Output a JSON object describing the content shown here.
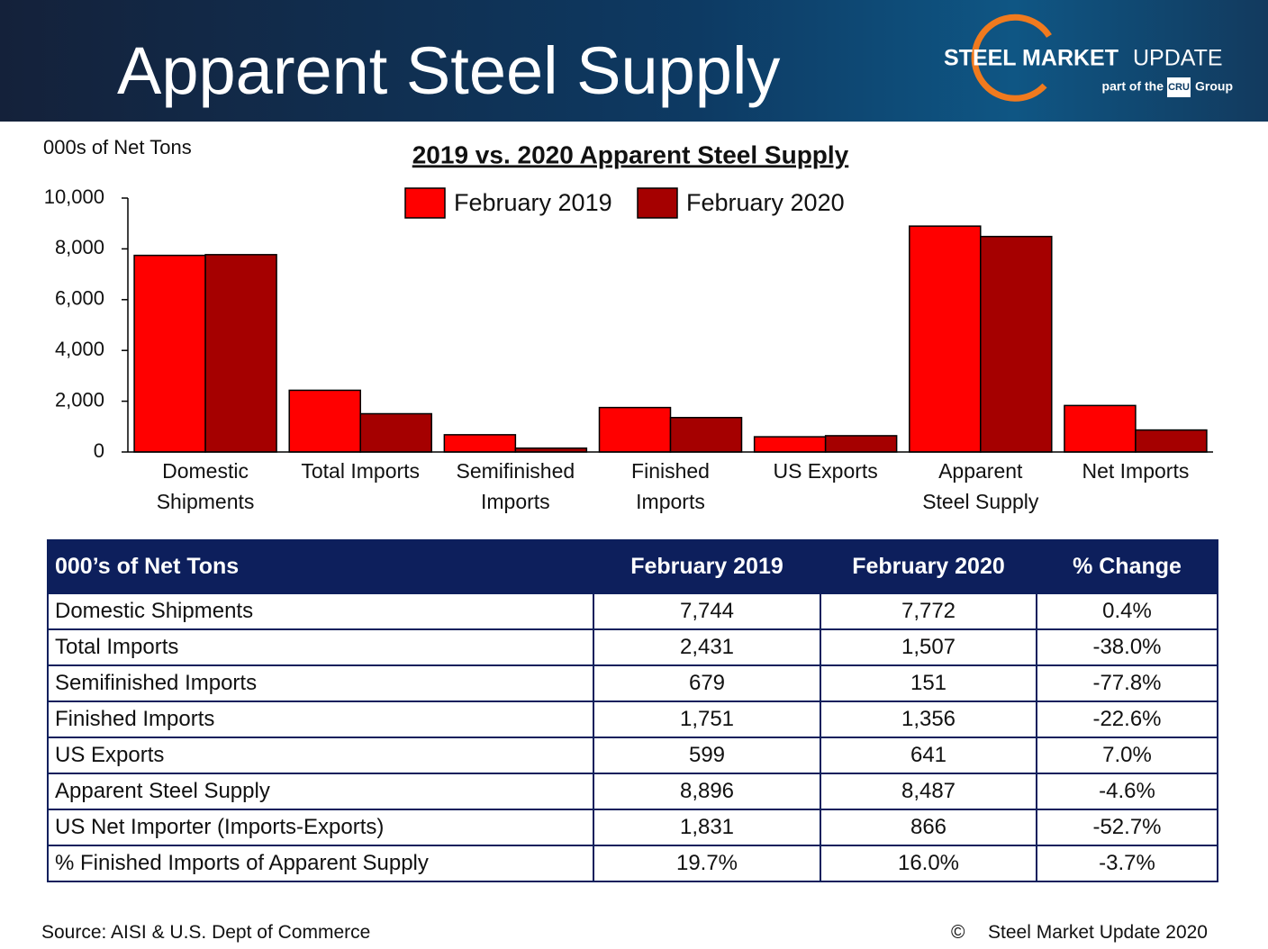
{
  "header": {
    "title": "Apparent Steel Supply",
    "logo_bold": "STEEL MARKET",
    "logo_light": "UPDATE",
    "logo_sub": "part of the",
    "logo_cru": "CRU",
    "logo_group": "Group"
  },
  "chart_data": {
    "type": "bar",
    "title": "2019 vs. 2020 Apparent Steel Supply",
    "y_label": "000s of Net Tons",
    "categories": [
      "Domestic Shipments",
      "Total Imports",
      "Semifinished Imports",
      "Finished Imports",
      "US Exports",
      "Apparent Steel Supply",
      "Net Imports"
    ],
    "series": [
      {
        "name": "February 2019",
        "color": "#ff0000",
        "values": [
          7744,
          2431,
          679,
          1751,
          599,
          8896,
          1831
        ]
      },
      {
        "name": "February 2020",
        "color": "#a50000",
        "values": [
          7772,
          1507,
          151,
          1356,
          641,
          8487,
          866
        ]
      }
    ],
    "ylim": [
      0,
      10000
    ],
    "yticks": [
      0,
      {
        "value": 2000,
        "label": "2,000"
      },
      {
        "value": 4000,
        "label": "4,000"
      },
      {
        "value": 6000,
        "label": "6,000"
      },
      {
        "value": 8000,
        "label": "8,000"
      },
      {
        "value": 10000,
        "label": "10,000"
      }
    ],
    "grid": false,
    "legend": "top"
  },
  "table": {
    "header": [
      "000’s of Net Tons",
      "February 2019",
      "February 2020",
      "% Change"
    ],
    "rows": [
      [
        "Domestic Shipments",
        "7,744",
        "7,772",
        "0.4%"
      ],
      [
        "Total Imports",
        "2,431",
        "1,507",
        "-38.0%"
      ],
      [
        "Semifinished Imports",
        "679",
        "151",
        "-77.8%"
      ],
      [
        "Finished Imports",
        "1,751",
        "1,356",
        "-22.6%"
      ],
      [
        "US Exports",
        "599",
        "641",
        "7.0%"
      ],
      [
        "Apparent Steel Supply",
        "8,896",
        "8,487",
        "-4.6%"
      ],
      [
        "US Net Importer (Imports-Exports)",
        "1,831",
        "866",
        "-52.7%"
      ],
      [
        "% Finished Imports of Apparent Supply",
        "19.7%",
        "16.0%",
        "-3.7%"
      ]
    ]
  },
  "footer": {
    "source": "Source:  AISI & U.S. Dept of Commerce",
    "copyright_symbol": "©",
    "copyright": "Steel Market Update 2020"
  }
}
